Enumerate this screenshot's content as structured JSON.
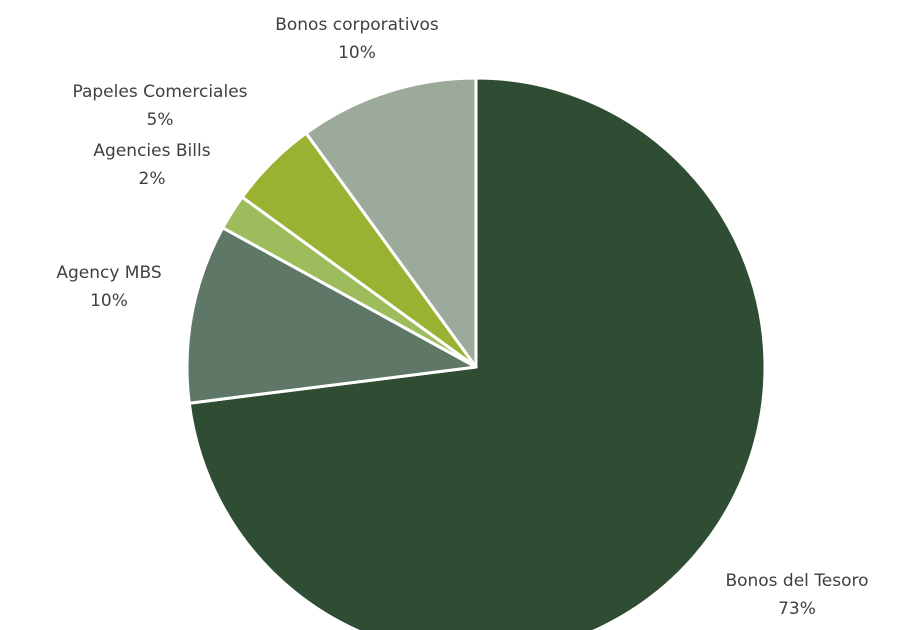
{
  "chart_data": {
    "type": "pie",
    "slices": [
      {
        "label": "Bonos del Tesoro",
        "value": 73,
        "value_label": "73%",
        "color": "#2e4d33"
      },
      {
        "label": "Agency MBS",
        "value": 10,
        "value_label": "10%",
        "color": "#5e7766"
      },
      {
        "label": "Agencies Bills",
        "value": 2,
        "value_label": "2%",
        "color": "#9dbd5d"
      },
      {
        "label": "Papeles Comerciales",
        "value": 5,
        "value_label": "5%",
        "color": "#99b231"
      },
      {
        "label": "Bonos corporativos",
        "value": 10,
        "value_label": "10%",
        "color": "#9caa9c"
      }
    ],
    "start": "12 o'clock",
    "direction": "clockwise"
  }
}
